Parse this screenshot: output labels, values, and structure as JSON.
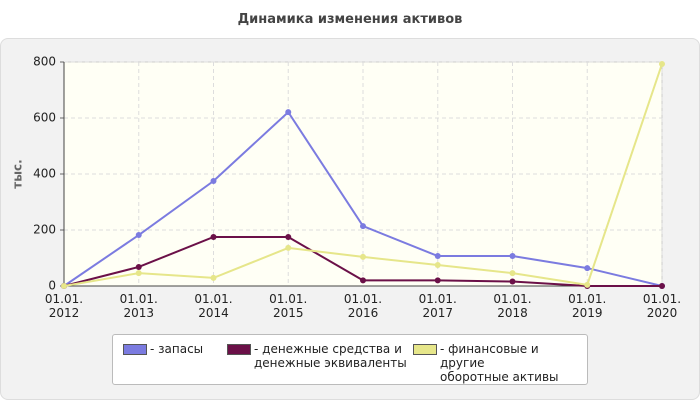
{
  "chart_data": {
    "type": "line",
    "title": "Динамика изменения активов",
    "y_label": "тыс.",
    "categories": [
      "01.01.\n2012",
      "01.01.\n2013",
      "01.01.\n2014",
      "01.01.\n2015",
      "01.01.\n2016",
      "01.01.\n2017",
      "01.01.\n2018",
      "01.01.\n2019",
      "01.01.\n2020"
    ],
    "series": [
      {
        "name": "- запасы",
        "color": "#7b7be0",
        "values": [
          0,
          182,
          375,
          621,
          214,
          107,
          107,
          64,
          0
        ]
      },
      {
        "name": "- денежные средства и\nденежные эквиваленты",
        "color": "#6b1048",
        "values": [
          0,
          68,
          175,
          175,
          20,
          20,
          16,
          0,
          0
        ]
      },
      {
        "name": "- финансовые и другие\nоборотные активы",
        "color": "#e6e68a",
        "values": [
          0,
          46,
          29,
          136,
          104,
          75,
          46,
          4,
          793
        ]
      }
    ],
    "ylim": [
      0,
      800
    ],
    "yticks": [
      0,
      200,
      400,
      600,
      800
    ],
    "grid": true,
    "legend": "bottom"
  }
}
